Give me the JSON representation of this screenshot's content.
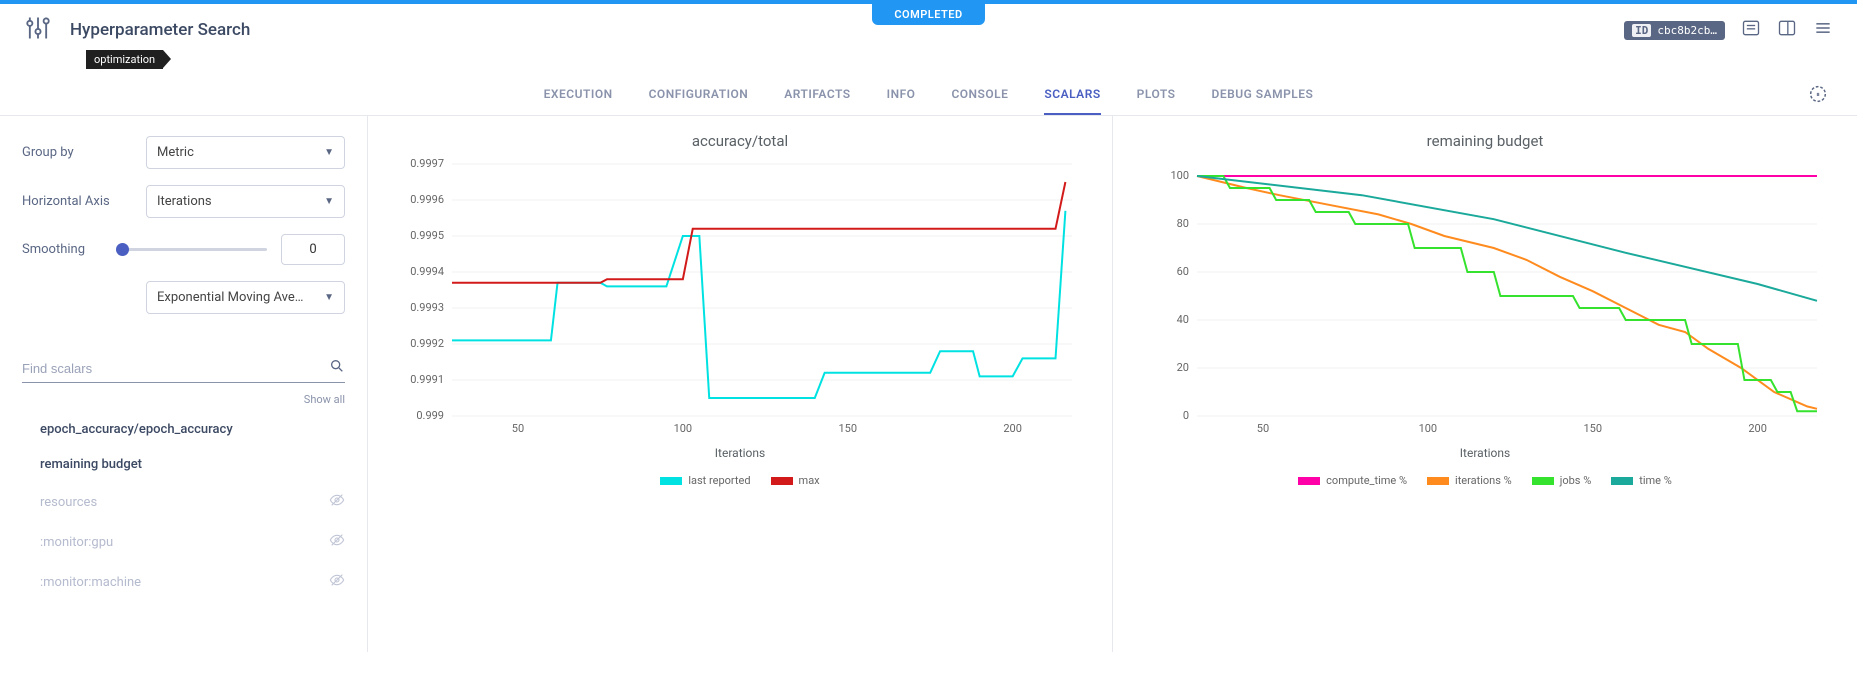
{
  "status": "COMPLETED",
  "title": "Hyperparameter Search",
  "tag": "optimization",
  "id_chip": {
    "label": "ID",
    "value": "cbc8b2cb…"
  },
  "tabs": [
    "EXECUTION",
    "CONFIGURATION",
    "ARTIFACTS",
    "INFO",
    "CONSOLE",
    "SCALARS",
    "PLOTS",
    "DEBUG SAMPLES"
  ],
  "active_tab": "SCALARS",
  "controls": {
    "group_by": {
      "label": "Group by",
      "value": "Metric"
    },
    "horizontal_axis": {
      "label": "Horizontal Axis",
      "value": "Iterations"
    },
    "smoothing": {
      "label": "Smoothing",
      "value": 0,
      "algo": "Exponential Moving Ave…"
    }
  },
  "search": {
    "placeholder": "Find scalars"
  },
  "show_all": "Show all",
  "scalars": [
    {
      "name": "epoch_accuracy/epoch_accuracy",
      "active": true
    },
    {
      "name": "remaining budget",
      "active": true
    },
    {
      "name": "resources",
      "active": false
    },
    {
      "name": ":monitor:gpu",
      "active": false
    },
    {
      "name": ":monitor:machine",
      "active": false
    }
  ],
  "chart1": {
    "title": "accuracy/total",
    "type": "line",
    "x_label": "Iterations",
    "xlim": [
      30,
      218
    ],
    "ylim": [
      0.999,
      0.9997
    ],
    "xticks": [
      50,
      100,
      150,
      200
    ],
    "yticks": [
      0.999,
      0.9991,
      0.9992,
      0.9993,
      0.9994,
      0.9995,
      0.9996,
      0.9997
    ],
    "series": [
      {
        "name": "last reported",
        "color": "#00e2e2",
        "points": [
          [
            30,
            0.99921
          ],
          [
            60,
            0.99921
          ],
          [
            62,
            0.99937
          ],
          [
            75,
            0.99937
          ],
          [
            77,
            0.99936
          ],
          [
            95,
            0.99936
          ],
          [
            100,
            0.9995
          ],
          [
            105,
            0.9995
          ],
          [
            108,
            0.99905
          ],
          [
            140,
            0.99905
          ],
          [
            143,
            0.99912
          ],
          [
            175,
            0.99912
          ],
          [
            178,
            0.99918
          ],
          [
            188,
            0.99918
          ],
          [
            190,
            0.99911
          ],
          [
            200,
            0.99911
          ],
          [
            203,
            0.99916
          ],
          [
            213,
            0.99916
          ],
          [
            216,
            0.99957
          ]
        ]
      },
      {
        "name": "max",
        "color": "#d21a1a",
        "points": [
          [
            30,
            0.99937
          ],
          [
            75,
            0.99937
          ],
          [
            77,
            0.99938
          ],
          [
            100,
            0.99938
          ],
          [
            103,
            0.99952
          ],
          [
            213,
            0.99952
          ],
          [
            216,
            0.99965
          ]
        ]
      }
    ]
  },
  "chart2": {
    "title": "remaining budget",
    "type": "line",
    "x_label": "Iterations",
    "xlim": [
      30,
      218
    ],
    "ylim": [
      0,
      105
    ],
    "xticks": [
      50,
      100,
      150,
      200
    ],
    "yticks": [
      0,
      20,
      40,
      60,
      80,
      100
    ],
    "series": [
      {
        "name": "compute_time %",
        "color": "#ff00a8",
        "points": [
          [
            30,
            100
          ],
          [
            218,
            100
          ]
        ]
      },
      {
        "name": "iterations %",
        "color": "#ff8b1f",
        "points": [
          [
            30,
            100
          ],
          [
            45,
            95
          ],
          [
            55,
            92
          ],
          [
            70,
            88
          ],
          [
            85,
            84
          ],
          [
            95,
            80
          ],
          [
            105,
            75
          ],
          [
            120,
            70
          ],
          [
            130,
            65
          ],
          [
            140,
            58
          ],
          [
            150,
            52
          ],
          [
            160,
            45
          ],
          [
            170,
            38
          ],
          [
            178,
            35
          ],
          [
            185,
            28
          ],
          [
            195,
            20
          ],
          [
            205,
            10
          ],
          [
            215,
            4
          ],
          [
            218,
            3
          ]
        ]
      },
      {
        "name": "jobs %",
        "color": "#35e22d",
        "points": [
          [
            30,
            100
          ],
          [
            38,
            100
          ],
          [
            40,
            95
          ],
          [
            52,
            95
          ],
          [
            54,
            90
          ],
          [
            64,
            90
          ],
          [
            66,
            85
          ],
          [
            76,
            85
          ],
          [
            78,
            80
          ],
          [
            94,
            80
          ],
          [
            96,
            70
          ],
          [
            110,
            70
          ],
          [
            112,
            60
          ],
          [
            120,
            60
          ],
          [
            122,
            50
          ],
          [
            144,
            50
          ],
          [
            146,
            45
          ],
          [
            158,
            45
          ],
          [
            160,
            40
          ],
          [
            178,
            40
          ],
          [
            180,
            30
          ],
          [
            194,
            30
          ],
          [
            196,
            15
          ],
          [
            204,
            15
          ],
          [
            206,
            10
          ],
          [
            210,
            10
          ],
          [
            212,
            2
          ],
          [
            218,
            2
          ]
        ]
      },
      {
        "name": "time %",
        "color": "#1aa99a",
        "points": [
          [
            30,
            100
          ],
          [
            80,
            92
          ],
          [
            120,
            82
          ],
          [
            160,
            68
          ],
          [
            200,
            55
          ],
          [
            218,
            48
          ]
        ]
      }
    ]
  }
}
